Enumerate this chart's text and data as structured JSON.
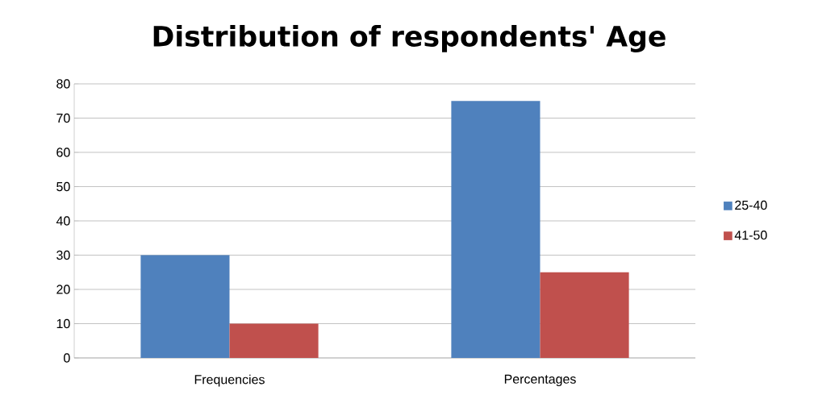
{
  "chart_data": {
    "type": "bar",
    "title": "Distribution of respondents' Age",
    "categories": [
      "Frequencies",
      "Percentages"
    ],
    "series": [
      {
        "name": "25-40",
        "color": "#4f81bd",
        "values": [
          30,
          75
        ]
      },
      {
        "name": "41-50",
        "color": "#c0504d",
        "values": [
          10,
          25
        ]
      }
    ],
    "ylim": [
      0,
      80
    ],
    "yticks": [
      0,
      10,
      20,
      30,
      40,
      50,
      60,
      70,
      80
    ],
    "grid": "y",
    "legend": "right"
  }
}
